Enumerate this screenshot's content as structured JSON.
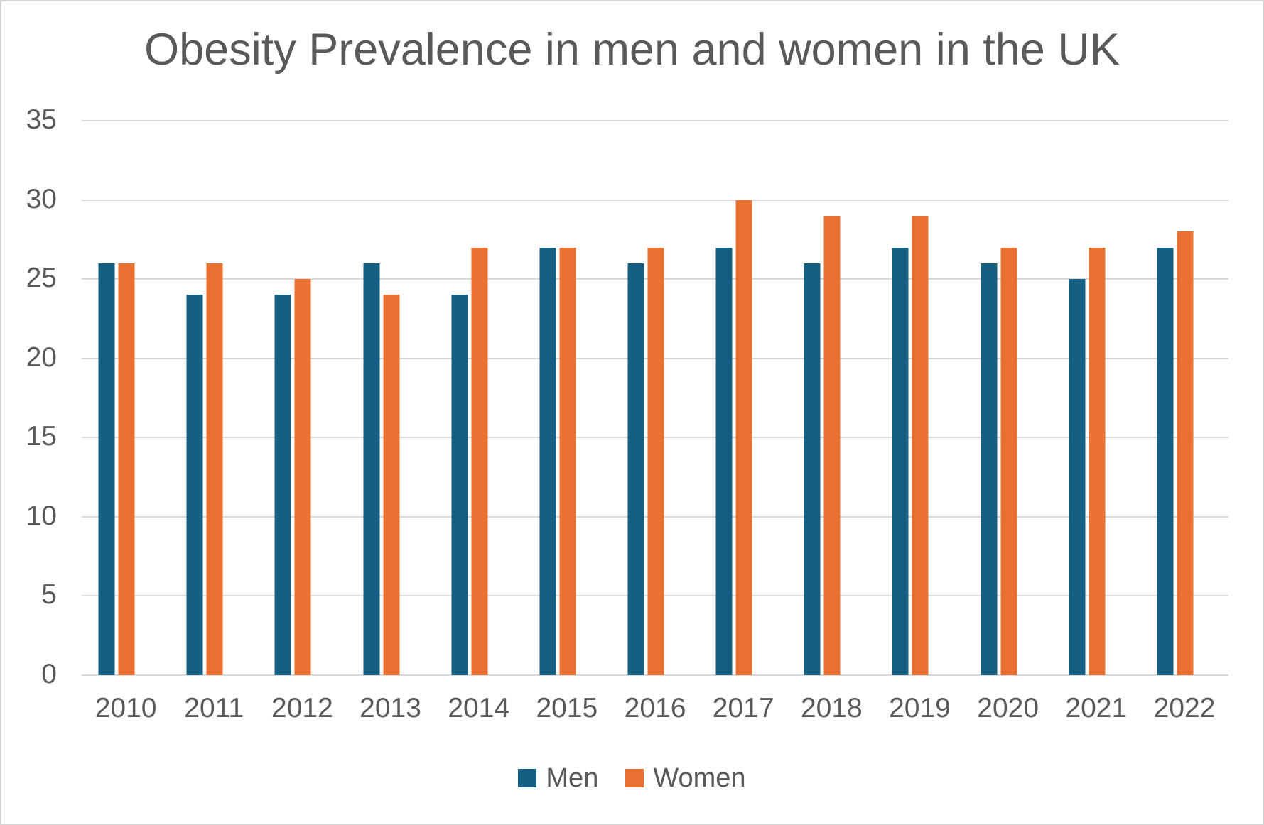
{
  "title": "Obesity Prevalence in men and women in the UK",
  "colors": {
    "men": "#156082",
    "women": "#E97132",
    "grid": "#d9d9d9",
    "text": "#595959",
    "border": "#d5d5d5",
    "background": "#ffffff"
  },
  "chart_data": {
    "type": "bar",
    "title": "Obesity Prevalence in men and women in the UK",
    "categories": [
      "2010",
      "2011",
      "2012",
      "2013",
      "2014",
      "2015",
      "2016",
      "2017",
      "2018",
      "2019",
      "2020",
      "2021",
      "2022"
    ],
    "series": [
      {
        "name": "Men",
        "color_key": "men",
        "values": [
          26,
          24,
          24,
          26,
          24,
          27,
          26,
          27,
          26,
          27,
          26,
          25,
          27
        ]
      },
      {
        "name": "Women",
        "color_key": "women",
        "values": [
          26,
          26,
          25,
          24,
          27,
          27,
          27,
          30,
          29,
          29,
          27,
          27,
          28
        ]
      }
    ],
    "xlabel": "",
    "ylabel": "",
    "ylim": [
      0,
      35
    ],
    "ytick_step": 5,
    "ytick_labels": [
      "0",
      "5",
      "10",
      "15",
      "20",
      "25",
      "30",
      "35"
    ],
    "grid": true,
    "legend_position": "bottom"
  },
  "legend": {
    "items": [
      {
        "label": "Men",
        "color_key": "men"
      },
      {
        "label": "Women",
        "color_key": "women"
      }
    ]
  }
}
